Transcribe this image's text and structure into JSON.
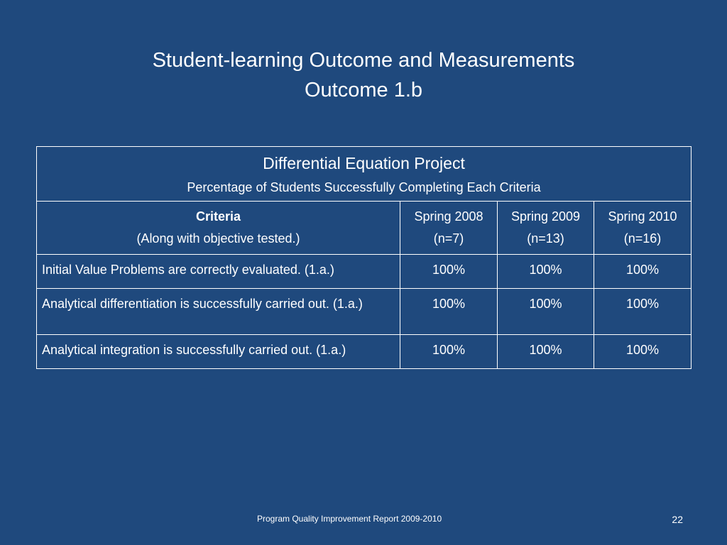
{
  "slide": {
    "title_line1": "Student-learning Outcome and Measurements",
    "title_line2": "Outcome 1.b"
  },
  "table": {
    "caption_title": "Differential Equation Project",
    "caption_subtitle": "Percentage of Students Successfully Completing Each Criteria",
    "header": {
      "criteria_label": "Criteria",
      "criteria_note": "(Along with objective tested.)",
      "columns": [
        {
          "term": "Spring 2008",
          "n": "(n=7)"
        },
        {
          "term": "Spring 2009",
          "n": "(n=13)"
        },
        {
          "term": "Spring 2010",
          "n": "(n=16)"
        }
      ]
    },
    "rows": [
      {
        "criteria": "Initial Value Problems are correctly evaluated. (1.a.)",
        "values": [
          "100%",
          "100%",
          "100%"
        ]
      },
      {
        "criteria": "Analytical differentiation is successfully carried out. (1.a.)",
        "values": [
          "100%",
          "100%",
          "100%"
        ]
      },
      {
        "criteria": "Analytical integration is successfully carried out. (1.a.)",
        "values": [
          "100%",
          "100%",
          "100%"
        ]
      }
    ]
  },
  "footer": {
    "text": "Program Quality Improvement Report 2009-2010",
    "page_number": "22"
  }
}
